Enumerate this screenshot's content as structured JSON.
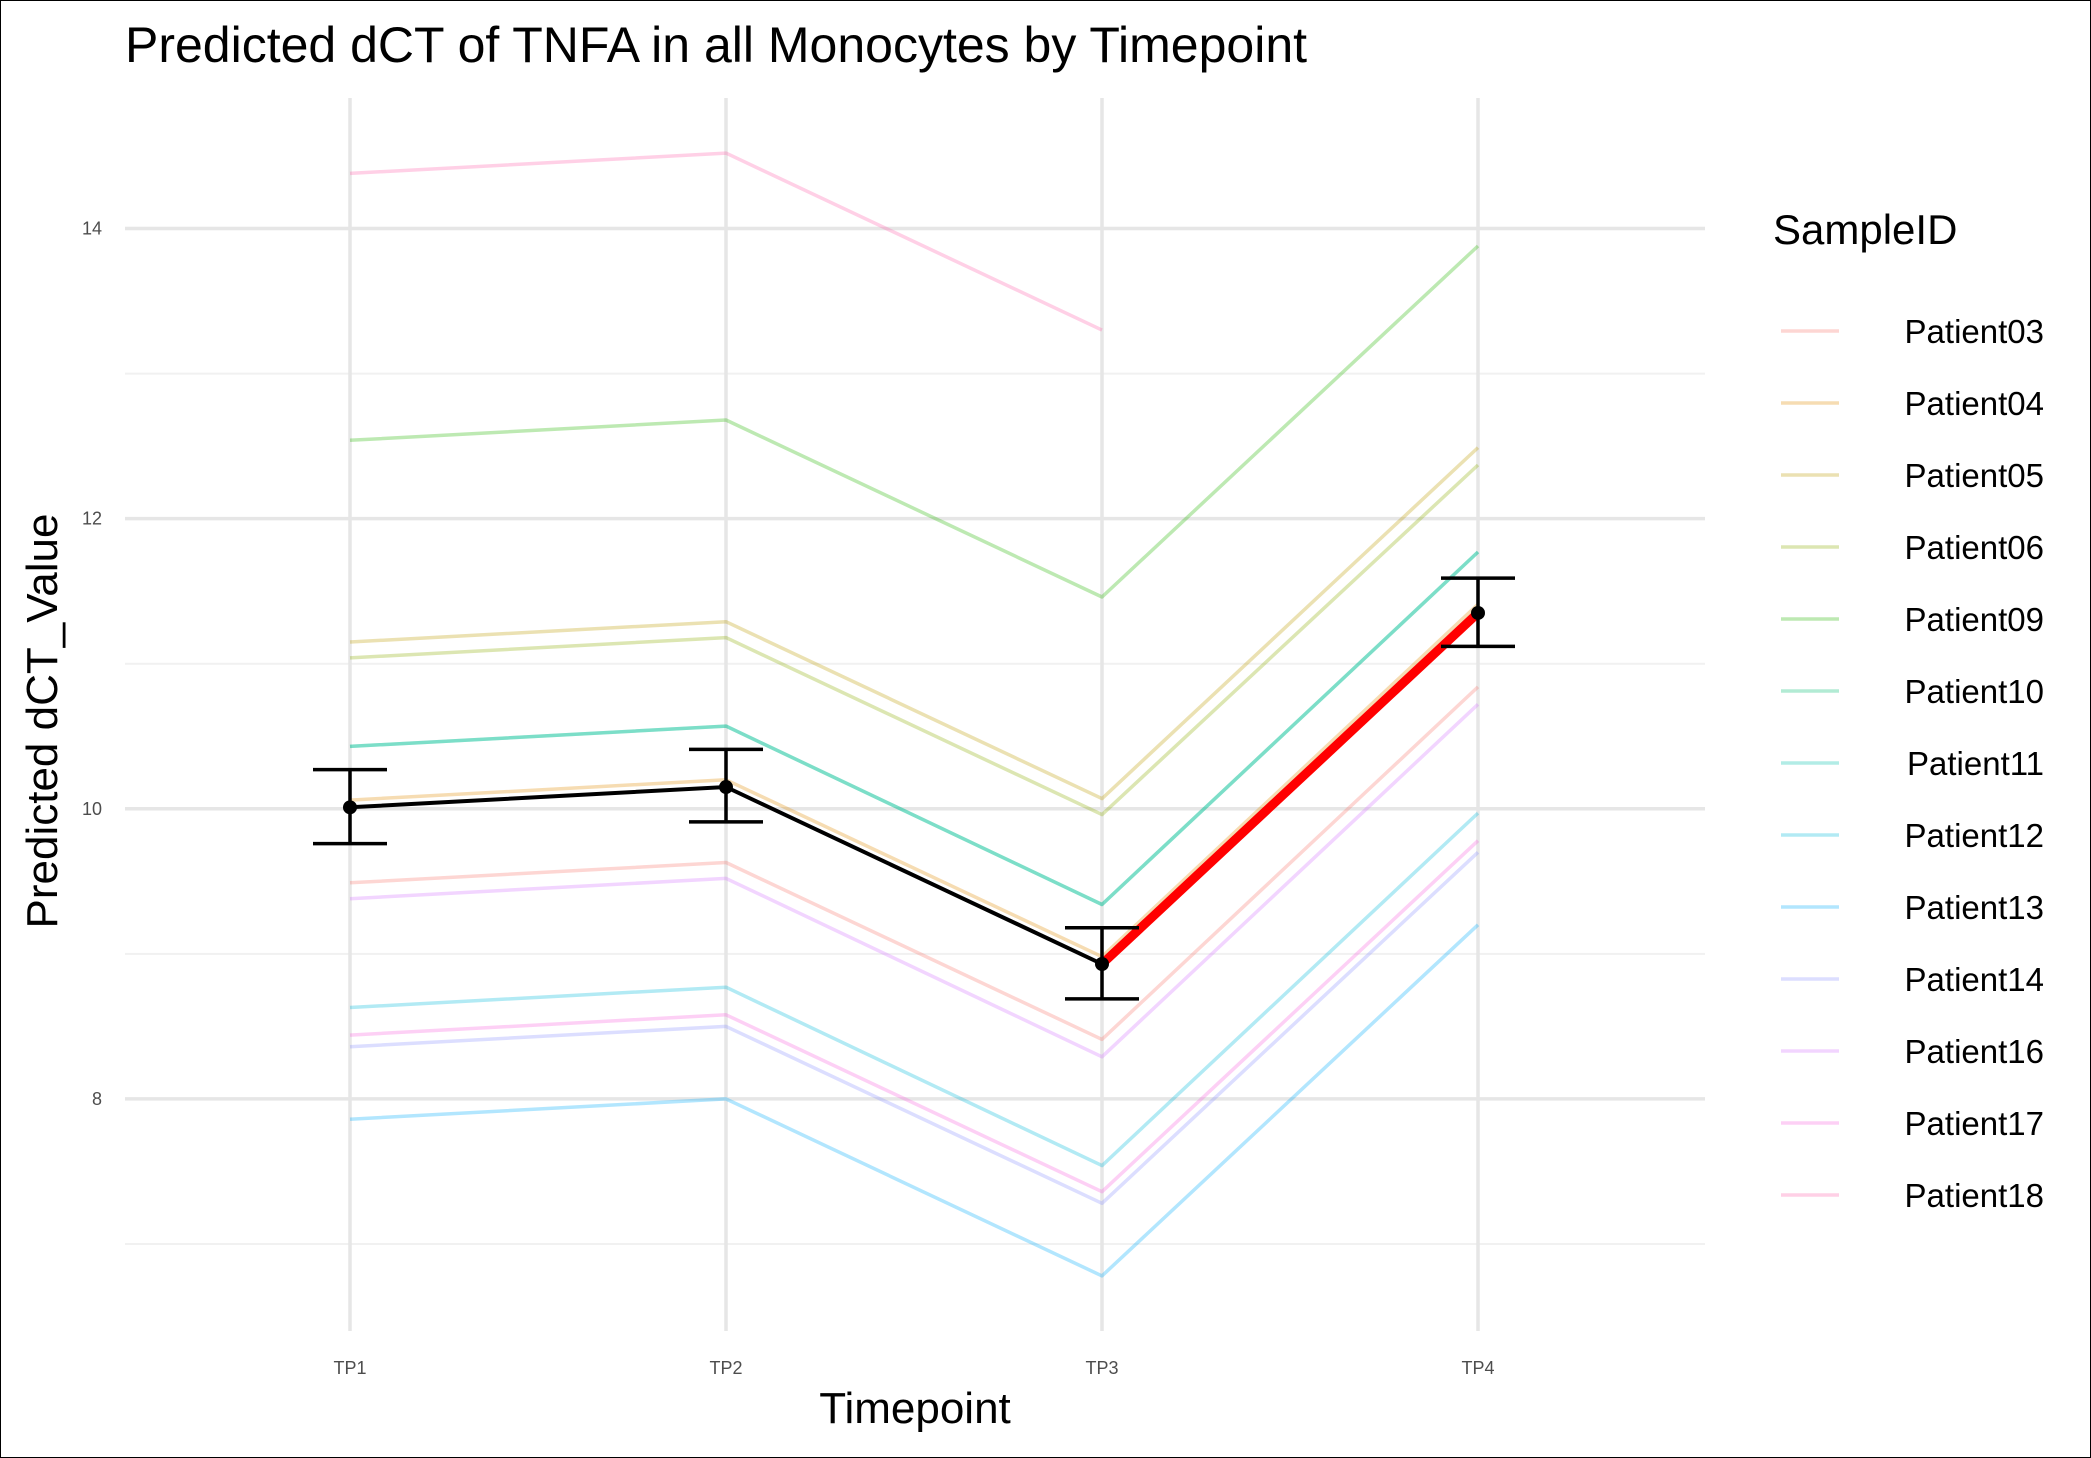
{
  "chart_data": {
    "type": "line",
    "title": "Predicted dCT of  TNFA in  all  Monocytes by Timepoint",
    "xlabel": "Timepoint",
    "ylabel": "Predicted dCT_Value",
    "categories": [
      "TP1",
      "TP2",
      "TP3",
      "TP4"
    ],
    "ylim": [
      6.4,
      14.9
    ],
    "y_ticks": [
      8,
      10,
      12,
      14
    ],
    "y_minor": [
      7,
      9,
      11,
      13
    ],
    "grid": true,
    "legend": {
      "title": "SampleID",
      "position": "right"
    },
    "series": [
      {
        "name": "Patient03",
        "color": "#F8766D",
        "values": [
          9.49,
          9.63,
          8.41,
          10.84
        ]
      },
      {
        "name": "Patient04",
        "color": "#E18A00",
        "values": [
          10.06,
          10.2,
          8.98,
          11.41
        ]
      },
      {
        "name": "Patient05",
        "color": "#BE9C00",
        "values": [
          11.15,
          11.29,
          10.07,
          12.49
        ]
      },
      {
        "name": "Patient06",
        "color": "#8CAB00",
        "values": [
          11.04,
          11.18,
          9.96,
          12.37
        ]
      },
      {
        "name": "Patient09",
        "color": "#24B700",
        "values": [
          12.54,
          12.68,
          11.46,
          13.88
        ]
      },
      {
        "name": "Patient10",
        "color": "#00BE70",
        "values": [
          10.43,
          10.57,
          9.34,
          11.77
        ]
      },
      {
        "name": "Patient11",
        "color": "#00C1AB",
        "values": [
          10.43,
          10.57,
          9.34,
          11.77
        ]
      },
      {
        "name": "Patient12",
        "color": "#00BBDA",
        "values": [
          8.63,
          8.77,
          7.54,
          9.97
        ]
      },
      {
        "name": "Patient13",
        "color": "#00ACFC",
        "values": [
          7.86,
          8.0,
          6.78,
          9.2
        ]
      },
      {
        "name": "Patient14",
        "color": "#8B93FF",
        "values": [
          8.36,
          8.5,
          7.28,
          9.7
        ]
      },
      {
        "name": "Patient16",
        "color": "#D575FE",
        "values": [
          9.38,
          9.52,
          8.29,
          10.72
        ]
      },
      {
        "name": "Patient17",
        "color": "#F962DD",
        "values": [
          8.44,
          8.58,
          7.36,
          9.78
        ]
      },
      {
        "name": "Patient18",
        "color": "#FF65AC",
        "values": [
          14.38,
          14.52,
          13.3,
          null
        ]
      }
    ],
    "mean": {
      "values": [
        10.01,
        10.15,
        8.93,
        11.35
      ],
      "error_low": [
        9.76,
        9.91,
        8.69,
        11.12
      ],
      "error_high": [
        10.27,
        10.41,
        9.18,
        11.59
      ],
      "color": "#000000"
    },
    "highlight_segment": {
      "from": "TP3",
      "to": "TP4",
      "color": "#FF0000"
    }
  }
}
